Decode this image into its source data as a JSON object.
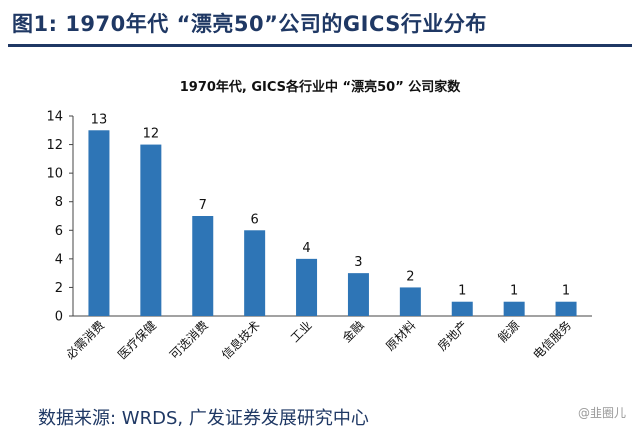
{
  "figure": {
    "title": "图1:  1970年代 “漂亮50”公司的GICS行业分布",
    "source": "数据来源:  WRDS,  广发证券发展研究中心",
    "watermark": "@韭圈儿"
  },
  "chart_data": {
    "type": "bar",
    "title": "1970年代, GICS各行业中 “漂亮50” 公司家数",
    "categories": [
      "必需消费",
      "医疗保健",
      "可选消费",
      "信息技术",
      "工业",
      "金融",
      "原材料",
      "房地产",
      "能源",
      "电信服务"
    ],
    "values": [
      13,
      12,
      7,
      6,
      4,
      3,
      2,
      1,
      1,
      1
    ],
    "ylim": [
      0,
      14
    ],
    "yticks": [
      0,
      2,
      4,
      6,
      8,
      10,
      12,
      14
    ],
    "xlabel": "",
    "ylabel": "",
    "bar_color": "#2e75b6",
    "data_labels": true,
    "grid": false,
    "legend": false
  }
}
